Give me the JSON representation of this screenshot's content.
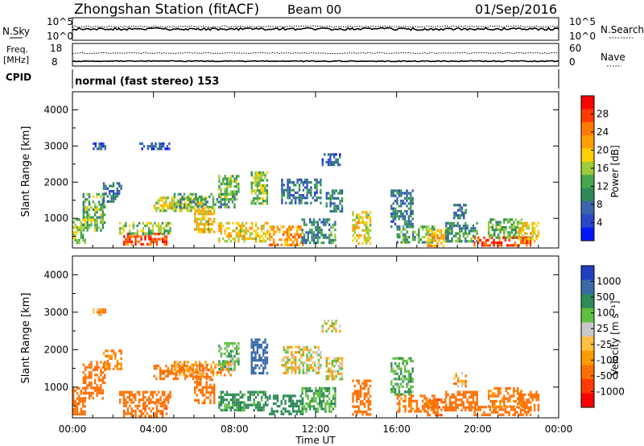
{
  "header": {
    "station": "Zhongshan Station (fitACF)",
    "beam": "Beam 00",
    "date": "01/Sep/2016"
  },
  "panels": {
    "nsky_label": "N.Sky",
    "nsky_ticks": [
      "10^5",
      "10^0"
    ],
    "nsearch_label": "N.Search",
    "nsearch_ticks": [
      "10^5",
      "10^0"
    ],
    "freq_label_1": "Freq.",
    "freq_label_2": "[MHz]",
    "freq_ticks": [
      "18",
      "8"
    ],
    "nave_label": "Nave",
    "nave_ticks": [
      "60",
      "0"
    ],
    "cpid_label": "CPID",
    "cpid_text": "normal (fast stereo) 153"
  },
  "colors": {
    "power_scale": [
      "#0018ff",
      "#2a47c8",
      "#3a64b0",
      "#2f8a5a",
      "#46a84c",
      "#9ccc3a",
      "#ffd000",
      "#ffa000",
      "#ff7a00",
      "#ff3a00",
      "#ff0000"
    ],
    "velocity_scale": [
      "#ff0000",
      "#ff3c00",
      "#ff7000",
      "#ff9a00",
      "#ffc040",
      "#c8c8c8",
      "#60c040",
      "#2e8a57",
      "#3a6aa8",
      "#2040c0"
    ]
  },
  "chart_data": [
    {
      "type": "heatmap",
      "name": "power",
      "ylabel": "Slant Range [km]",
      "yticks": [
        "4000",
        "3000",
        "2000",
        "1000"
      ],
      "ylim": [
        180,
        4500
      ],
      "colorbar_label": "Power [dB]",
      "colorbar_ticks": [
        "28",
        "24",
        "20",
        "16",
        "12",
        "8",
        "4"
      ],
      "echo_regions": [
        {
          "t0": 0.0,
          "t1": 0.6,
          "r0": 300,
          "r1": 1000,
          "v": 14
        },
        {
          "t0": 0.5,
          "t1": 1.6,
          "r0": 700,
          "r1": 1700,
          "v": 12
        },
        {
          "t0": 1.5,
          "t1": 2.4,
          "r0": 1500,
          "r1": 2000,
          "v": 6
        },
        {
          "t0": 1.0,
          "t1": 1.6,
          "r0": 2900,
          "r1": 3100,
          "v": 5
        },
        {
          "t0": 2.5,
          "t1": 4.6,
          "r0": 250,
          "r1": 600,
          "v": 26
        },
        {
          "t0": 2.3,
          "t1": 4.8,
          "r0": 600,
          "r1": 900,
          "v": 14
        },
        {
          "t0": 3.3,
          "t1": 4.8,
          "r0": 2900,
          "r1": 3100,
          "v": 4
        },
        {
          "t0": 4.0,
          "t1": 6.6,
          "r0": 1200,
          "r1": 1600,
          "v": 17
        },
        {
          "t0": 5.0,
          "t1": 8.0,
          "r0": 1300,
          "r1": 1700,
          "v": 10
        },
        {
          "t0": 6.0,
          "t1": 7.0,
          "r0": 600,
          "r1": 1300,
          "v": 18
        },
        {
          "t0": 7.2,
          "t1": 8.2,
          "r0": 1500,
          "r1": 2200,
          "v": 13
        },
        {
          "t0": 7.2,
          "t1": 9.6,
          "r0": 350,
          "r1": 900,
          "v": 18
        },
        {
          "t0": 8.8,
          "t1": 9.6,
          "r0": 1400,
          "r1": 2300,
          "v": 14
        },
        {
          "t0": 9.7,
          "t1": 11.4,
          "r0": 300,
          "r1": 800,
          "v": 22
        },
        {
          "t0": 10.3,
          "t1": 12.3,
          "r0": 1400,
          "r1": 2100,
          "v": 7
        },
        {
          "t0": 11.3,
          "t1": 13.0,
          "r0": 350,
          "r1": 1000,
          "v": 9
        },
        {
          "t0": 12.3,
          "t1": 13.2,
          "r0": 2500,
          "r1": 2800,
          "v": 5
        },
        {
          "t0": 12.5,
          "t1": 13.3,
          "r0": 1200,
          "r1": 1800,
          "v": 7
        },
        {
          "t0": 13.8,
          "t1": 14.7,
          "r0": 300,
          "r1": 1200,
          "v": 18
        },
        {
          "t0": 15.7,
          "t1": 16.8,
          "r0": 800,
          "r1": 1800,
          "v": 8
        },
        {
          "t0": 16.0,
          "t1": 17.9,
          "r0": 350,
          "r1": 800,
          "v": 12
        },
        {
          "t0": 17.5,
          "t1": 18.4,
          "r0": 250,
          "r1": 700,
          "v": 20
        },
        {
          "t0": 18.4,
          "t1": 20.0,
          "r0": 350,
          "r1": 900,
          "v": 10
        },
        {
          "t0": 19.8,
          "t1": 22.6,
          "r0": 250,
          "r1": 500,
          "v": 27
        },
        {
          "t0": 20.5,
          "t1": 22.3,
          "r0": 500,
          "r1": 1000,
          "v": 12
        },
        {
          "t0": 22.0,
          "t1": 23.0,
          "r0": 400,
          "r1": 900,
          "v": 19
        },
        {
          "t0": 18.8,
          "t1": 19.4,
          "r0": 1000,
          "r1": 1400,
          "v": 7
        }
      ]
    },
    {
      "type": "heatmap",
      "name": "velocity",
      "ylabel": "Slant Range [km]",
      "yticks": [
        "4000",
        "3000",
        "2000",
        "1000"
      ],
      "ylim": [
        180,
        4500
      ],
      "colorbar_label": "Velocity [m s⁻¹]",
      "colorbar_ticks": [
        "1000",
        "500",
        "100",
        "25",
        "-25",
        "-100",
        "-500",
        "-1000"
      ],
      "xlabel": "Time UT",
      "xticks": [
        "00:00",
        "04:00",
        "08:00",
        "12:00",
        "16:00",
        "20:00",
        "00:00"
      ],
      "xlim": [
        0,
        24
      ],
      "echo_regions": [
        {
          "t0": 0.0,
          "t1": 0.6,
          "r0": 300,
          "r1": 1000,
          "v": -150
        },
        {
          "t0": 0.5,
          "t1": 1.6,
          "r0": 700,
          "r1": 1700,
          "v": -200
        },
        {
          "t0": 1.5,
          "t1": 2.4,
          "r0": 1500,
          "r1": 2000,
          "v": -80
        },
        {
          "t0": 1.0,
          "t1": 1.6,
          "r0": 2900,
          "r1": 3100,
          "v": -60
        },
        {
          "t0": 2.5,
          "t1": 4.6,
          "r0": 250,
          "r1": 600,
          "v": -250
        },
        {
          "t0": 2.3,
          "t1": 4.8,
          "r0": 600,
          "r1": 900,
          "v": -150
        },
        {
          "t0": 4.0,
          "t1": 6.6,
          "r0": 1200,
          "r1": 1600,
          "v": -120
        },
        {
          "t0": 5.0,
          "t1": 8.0,
          "r0": 1300,
          "r1": 1700,
          "v": -60
        },
        {
          "t0": 6.0,
          "t1": 7.0,
          "r0": 600,
          "r1": 1300,
          "v": -180
        },
        {
          "t0": 7.2,
          "t1": 8.2,
          "r0": 1500,
          "r1": 2200,
          "v": 50
        },
        {
          "t0": 7.2,
          "t1": 9.6,
          "r0": 350,
          "r1": 900,
          "v": 120
        },
        {
          "t0": 8.8,
          "t1": 9.6,
          "r0": 1400,
          "r1": 2300,
          "v": 400
        },
        {
          "t0": 9.7,
          "t1": 11.4,
          "r0": 300,
          "r1": 800,
          "v": 150
        },
        {
          "t0": 10.3,
          "t1": 12.3,
          "r0": 1400,
          "r1": 2100,
          "v": 0
        },
        {
          "t0": 11.3,
          "t1": 13.0,
          "r0": 350,
          "r1": 1000,
          "v": 80
        },
        {
          "t0": 12.3,
          "t1": 13.2,
          "r0": 2500,
          "r1": 2800,
          "v": 0
        },
        {
          "t0": 12.5,
          "t1": 13.3,
          "r0": 1200,
          "r1": 1800,
          "v": 0
        },
        {
          "t0": 13.8,
          "t1": 14.7,
          "r0": 300,
          "r1": 1200,
          "v": -200
        },
        {
          "t0": 15.7,
          "t1": 16.8,
          "r0": 800,
          "r1": 1800,
          "v": 60
        },
        {
          "t0": 16.0,
          "t1": 17.9,
          "r0": 350,
          "r1": 800,
          "v": -100
        },
        {
          "t0": 17.5,
          "t1": 18.4,
          "r0": 250,
          "r1": 700,
          "v": -250
        },
        {
          "t0": 18.4,
          "t1": 20.0,
          "r0": 350,
          "r1": 900,
          "v": -120
        },
        {
          "t0": 19.8,
          "t1": 22.6,
          "r0": 250,
          "r1": 500,
          "v": -200
        },
        {
          "t0": 20.5,
          "t1": 22.3,
          "r0": 500,
          "r1": 1000,
          "v": -90
        },
        {
          "t0": 22.0,
          "t1": 23.0,
          "r0": 400,
          "r1": 900,
          "v": -150
        },
        {
          "t0": 18.8,
          "t1": 19.4,
          "r0": 1000,
          "r1": 1400,
          "v": -40
        }
      ]
    }
  ]
}
